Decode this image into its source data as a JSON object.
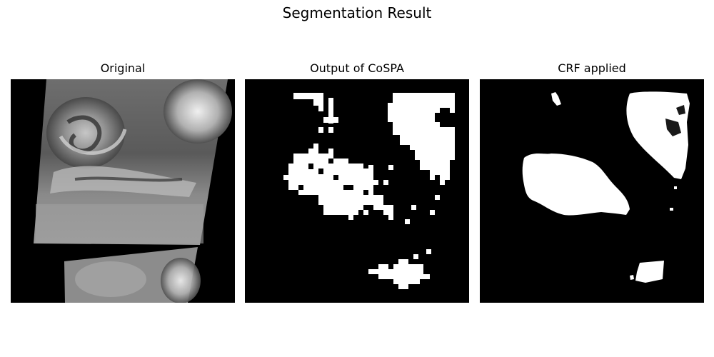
{
  "figure": {
    "title": "Segmentation Result"
  },
  "panels": [
    {
      "title": "Original"
    },
    {
      "title": "Output of CoSPA"
    },
    {
      "title": "CRF applied"
    }
  ],
  "colors": {
    "background": "#000000",
    "mask": "#ffffff",
    "figure_bg": "#ffffff"
  }
}
